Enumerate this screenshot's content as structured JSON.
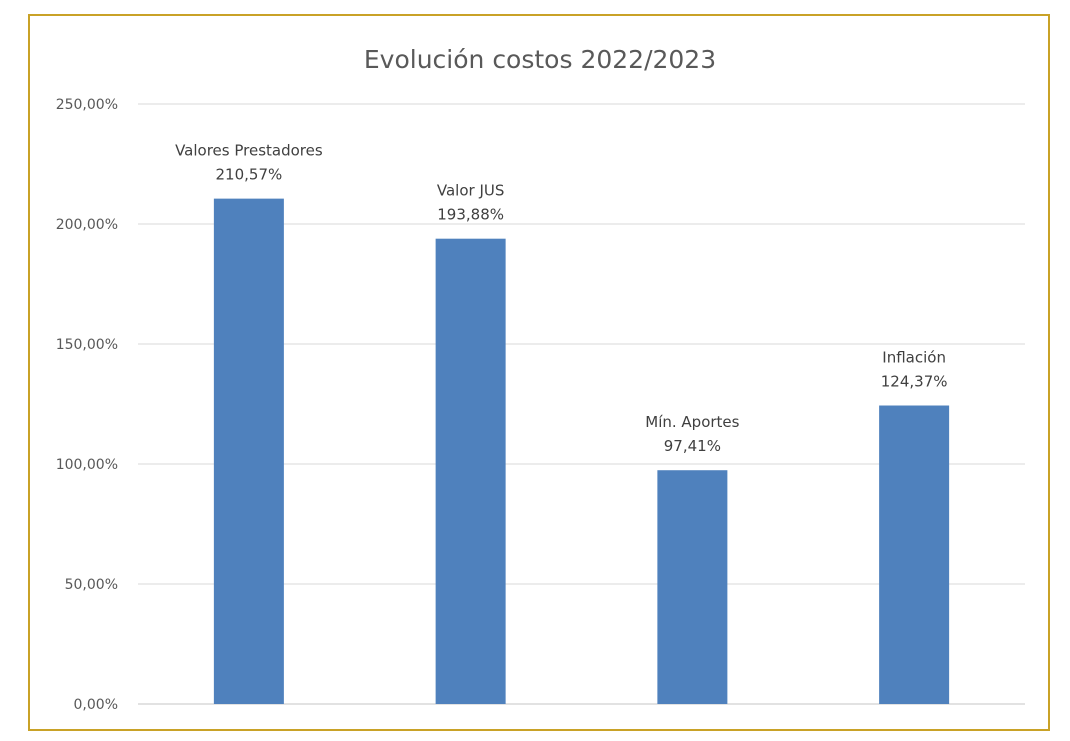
{
  "chart_data": {
    "type": "bar",
    "title": "Evolución costos 2022/2023",
    "categories": [
      "Valores Prestadores",
      "Valor JUS",
      "Mín. Aportes",
      "Inflación"
    ],
    "values": [
      210.57,
      193.88,
      97.41,
      124.37
    ],
    "value_labels": [
      "210,57%",
      "193,88%",
      "97,41%",
      "124,37%"
    ],
    "category_labels_visible": [
      "Valores Prestadores",
      "Valor JUS",
      "Mín. Aportes",
      "Inflación"
    ],
    "xlabel": "",
    "ylabel": "",
    "ylim": [
      0,
      250
    ],
    "yticks": [
      0,
      50,
      100,
      150,
      200,
      250
    ],
    "ytick_labels": [
      "0,00%",
      "50,00%",
      "100,00%",
      "150,00%",
      "200,00%",
      "250,00%"
    ],
    "grid": true,
    "legend": "none",
    "bar_color": "#4f81bd",
    "grid_color": "#d9d9d9",
    "border_color": "#c9a227"
  }
}
